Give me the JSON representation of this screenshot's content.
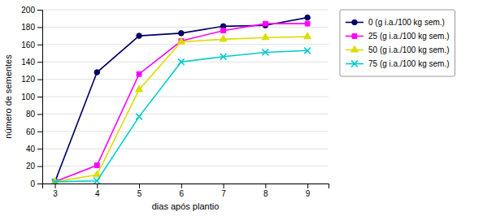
{
  "chart_data": {
    "type": "line",
    "xlabel": "dias após plantio",
    "ylabel": "número de sementes",
    "x": [
      3,
      4,
      5,
      6,
      7,
      8,
      9
    ],
    "series": [
      {
        "name": "0 (g i.a./100 kg sem.)",
        "color": "#000066",
        "marker": "circle",
        "values": [
          2,
          128,
          170,
          173,
          181,
          182,
          191
        ]
      },
      {
        "name": "25 (g i.a./100 kg sem.)",
        "color": "#FF00FF",
        "marker": "square",
        "values": [
          2,
          21,
          126,
          164,
          176,
          184,
          184
        ]
      },
      {
        "name": "50 (g i.a./100 kg sem.)",
        "color": "#DDDD00",
        "marker": "triangle",
        "values": [
          2,
          10,
          108,
          163,
          166,
          168,
          169
        ]
      },
      {
        "name": "75 (g i.a./100 kg sem.)",
        "color": "#00CCCC",
        "marker": "x",
        "values": [
          2,
          3,
          77,
          140,
          146,
          151,
          153
        ]
      }
    ],
    "xlim": [
      2.7,
      9.5
    ],
    "xticks": [
      3,
      4,
      5,
      6,
      7,
      8,
      9
    ],
    "ylim": [
      0,
      200
    ],
    "yticks": [
      0,
      20,
      40,
      60,
      80,
      100,
      120,
      140,
      160,
      180,
      200
    ],
    "grid": "y",
    "legend": "right"
  }
}
